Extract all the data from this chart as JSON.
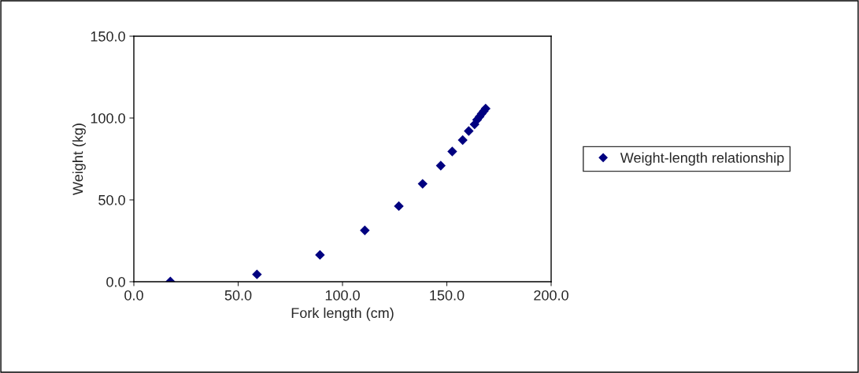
{
  "chart_data": {
    "type": "scatter",
    "xlabel": "Fork length (cm)",
    "ylabel": "Weight (kg)",
    "xlim": [
      0,
      200
    ],
    "ylim": [
      0,
      150
    ],
    "xticks": [
      {
        "value": 0,
        "label": "0.0"
      },
      {
        "value": 50,
        "label": "50.0"
      },
      {
        "value": 100,
        "label": "100.0"
      },
      {
        "value": 150,
        "label": "150.0"
      },
      {
        "value": 200,
        "label": "200.0"
      }
    ],
    "yticks": [
      {
        "value": 0,
        "label": "0.0"
      },
      {
        "value": 50,
        "label": "50.0"
      },
      {
        "value": 100,
        "label": "100.0"
      },
      {
        "value": 150,
        "label": "150.0"
      }
    ],
    "grid": false,
    "legend": "right",
    "marker": "diamond",
    "series": [
      {
        "name": "Weight-length relationship",
        "color": "#000080",
        "x": [
          17.5,
          59.0,
          89.2,
          110.7,
          127.0,
          138.4,
          147.1,
          152.6,
          157.6,
          160.5,
          163.3,
          164.5,
          165.7,
          166.7,
          167.7,
          168.6
        ],
        "values": [
          0.1,
          4.5,
          16.4,
          31.4,
          46.2,
          59.8,
          70.9,
          79.6,
          86.5,
          92.1,
          96.1,
          98.9,
          100.8,
          102.6,
          104.2,
          105.8
        ]
      }
    ]
  }
}
